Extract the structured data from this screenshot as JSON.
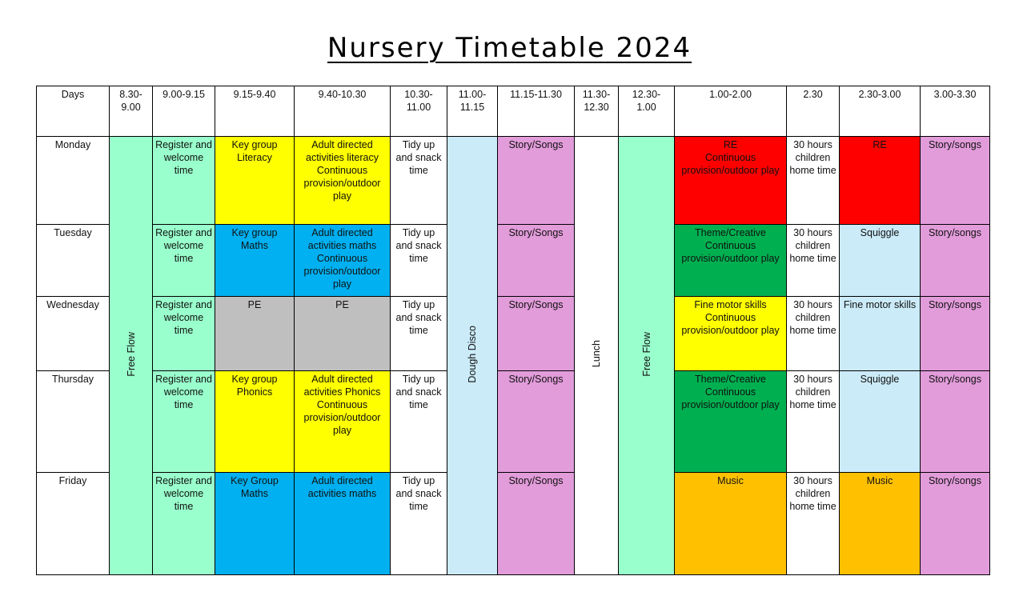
{
  "title": "Nursery Timetable 2024",
  "colors": {
    "aqua": "#99FFCC",
    "yellow": "#FFFF00",
    "blue": "#00B0F0",
    "grey": "#BFBFBF",
    "lightblue": "#CBEBF9",
    "pink": "#E29CDA",
    "red": "#FF0000",
    "green": "#00B050",
    "orange": "#FFC000",
    "white": "#FFFFFF"
  },
  "headers": [
    "Days",
    "8.30-\n9.00",
    "9.00-9.15",
    "9.15-9.40",
    "9.40-10.30",
    "10.30-\n11.00",
    "11.00-\n11.15",
    "11.15-11.30",
    "11.30-\n12.30",
    "12.30-\n1.00",
    "1.00-2.00",
    "2.30",
    "2.30-3.00",
    "3.00-3.30"
  ],
  "spanning": [
    {
      "column": 1,
      "text": "Free Flow",
      "color": "aqua"
    },
    {
      "column": 6,
      "text": "Dough Disco",
      "color": "lightblue"
    },
    {
      "column": 8,
      "text": "Lunch",
      "color": "white"
    },
    {
      "column": 9,
      "text": "Free Flow",
      "color": "aqua"
    }
  ],
  "rows": [
    {
      "day": "Monday",
      "cells": [
        {
          "text": "Register and welcome time",
          "color": "aqua"
        },
        {
          "text": "Key group Literacy",
          "color": "yellow"
        },
        {
          "text": "Adult directed activities literacy Continuous provision/outdoor play",
          "color": "yellow"
        },
        {
          "text": "Tidy up and snack time",
          "color": "white"
        },
        {
          "text": "Story/Songs",
          "color": "pink"
        },
        {
          "text": "RE\nContinuous provision/outdoor play",
          "color": "red"
        },
        {
          "text": "30 hours children home time",
          "color": "white"
        },
        {
          "text": "RE",
          "color": "red"
        },
        {
          "text": "Story/songs",
          "color": "pink"
        }
      ]
    },
    {
      "day": "Tuesday",
      "cells": [
        {
          "text": "Register and welcome time",
          "color": "aqua"
        },
        {
          "text": "Key group Maths",
          "color": "blue"
        },
        {
          "text": "Adult directed activities maths Continuous provision/outdoor play",
          "color": "blue"
        },
        {
          "text": "Tidy up and snack time",
          "color": "white"
        },
        {
          "text": "Story/Songs",
          "color": "pink"
        },
        {
          "text": "Theme/Creative Continuous provision/outdoor play",
          "color": "green"
        },
        {
          "text": "30 hours children home time",
          "color": "white"
        },
        {
          "text": "Squiggle",
          "color": "lightblue"
        },
        {
          "text": "Story/songs",
          "color": "pink"
        }
      ]
    },
    {
      "day": "Wednesday",
      "cells": [
        {
          "text": "Register and welcome time",
          "color": "aqua"
        },
        {
          "text": "PE",
          "color": "grey"
        },
        {
          "text": "PE",
          "color": "grey"
        },
        {
          "text": "Tidy up and snack time",
          "color": "white"
        },
        {
          "text": "Story/Songs",
          "color": "pink"
        },
        {
          "text": "Fine motor skills Continuous provision/outdoor play",
          "color": "yellow"
        },
        {
          "text": "30 hours children home time",
          "color": "white"
        },
        {
          "text": "Fine motor skills",
          "color": "lightblue"
        },
        {
          "text": "Story/songs",
          "color": "pink"
        }
      ]
    },
    {
      "day": "Thursday",
      "cells": [
        {
          "text": "Register and welcome time",
          "color": "aqua"
        },
        {
          "text": "Key group Phonics",
          "color": "yellow"
        },
        {
          "text": "Adult directed activities Phonics Continuous provision/outdoor play",
          "color": "yellow"
        },
        {
          "text": "Tidy up and snack time",
          "color": "white"
        },
        {
          "text": "Story/Songs",
          "color": "pink"
        },
        {
          "text": "Theme/Creative Continuous provision/outdoor play",
          "color": "green"
        },
        {
          "text": "30 hours children home time",
          "color": "white"
        },
        {
          "text": "Squiggle",
          "color": "lightblue"
        },
        {
          "text": "Story/songs",
          "color": "pink"
        }
      ]
    },
    {
      "day": "Friday",
      "cells": [
        {
          "text": "Register and welcome time",
          "color": "aqua"
        },
        {
          "text": "Key Group Maths",
          "color": "blue"
        },
        {
          "text": "Adult directed activities maths",
          "color": "blue"
        },
        {
          "text": "Tidy up and snack time",
          "color": "white"
        },
        {
          "text": "Story/Songs",
          "color": "pink"
        },
        {
          "text": "Music",
          "color": "orange"
        },
        {
          "text": "30 hours children home time",
          "color": "white"
        },
        {
          "text": "Music",
          "color": "orange"
        },
        {
          "text": "Story/songs",
          "color": "pink"
        }
      ]
    }
  ]
}
